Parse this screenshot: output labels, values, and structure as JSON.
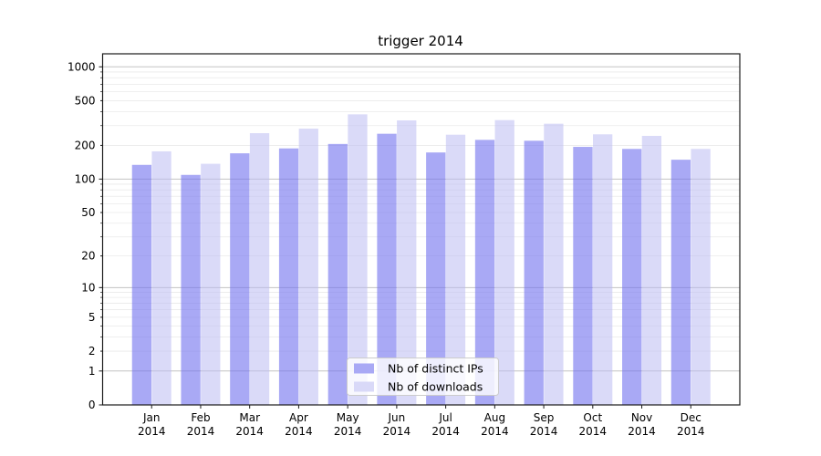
{
  "chart_data": {
    "type": "bar",
    "title": "trigger 2014",
    "categories": [
      "Jan",
      "Feb",
      "Mar",
      "Apr",
      "May",
      "Jun",
      "Jul",
      "Aug",
      "Sep",
      "Oct",
      "Nov",
      "Dec"
    ],
    "year_label": "2014",
    "series": [
      {
        "name": "Nb of distinct IPs",
        "swatch": "#a9a9f5",
        "fill": "#7070ee",
        "fill_opacity": 0.6,
        "values": [
          134,
          109,
          170,
          188,
          206,
          254,
          173,
          224,
          220,
          194,
          186,
          149
        ]
      },
      {
        "name": "Nb of downloads",
        "swatch": "#d9d9f8",
        "fill": "#bbbbf2",
        "fill_opacity": 0.55,
        "values": [
          177,
          137,
          257,
          282,
          378,
          334,
          249,
          336,
          312,
          251,
          243,
          186
        ]
      }
    ],
    "yscale": "log1p",
    "ylim": [
      0,
      1305
    ],
    "yticks": [
      0,
      1,
      2,
      5,
      10,
      20,
      50,
      100,
      200,
      500,
      1000
    ],
    "grid": {
      "on": true,
      "major_at": [
        1,
        10,
        100,
        1000
      ],
      "minor_subs": [
        2,
        3,
        4,
        5,
        6,
        7,
        8,
        9
      ],
      "major_color": "#c3c3c3",
      "minor_color": "#eaeaea"
    },
    "legend": {
      "position": "lower center"
    }
  }
}
